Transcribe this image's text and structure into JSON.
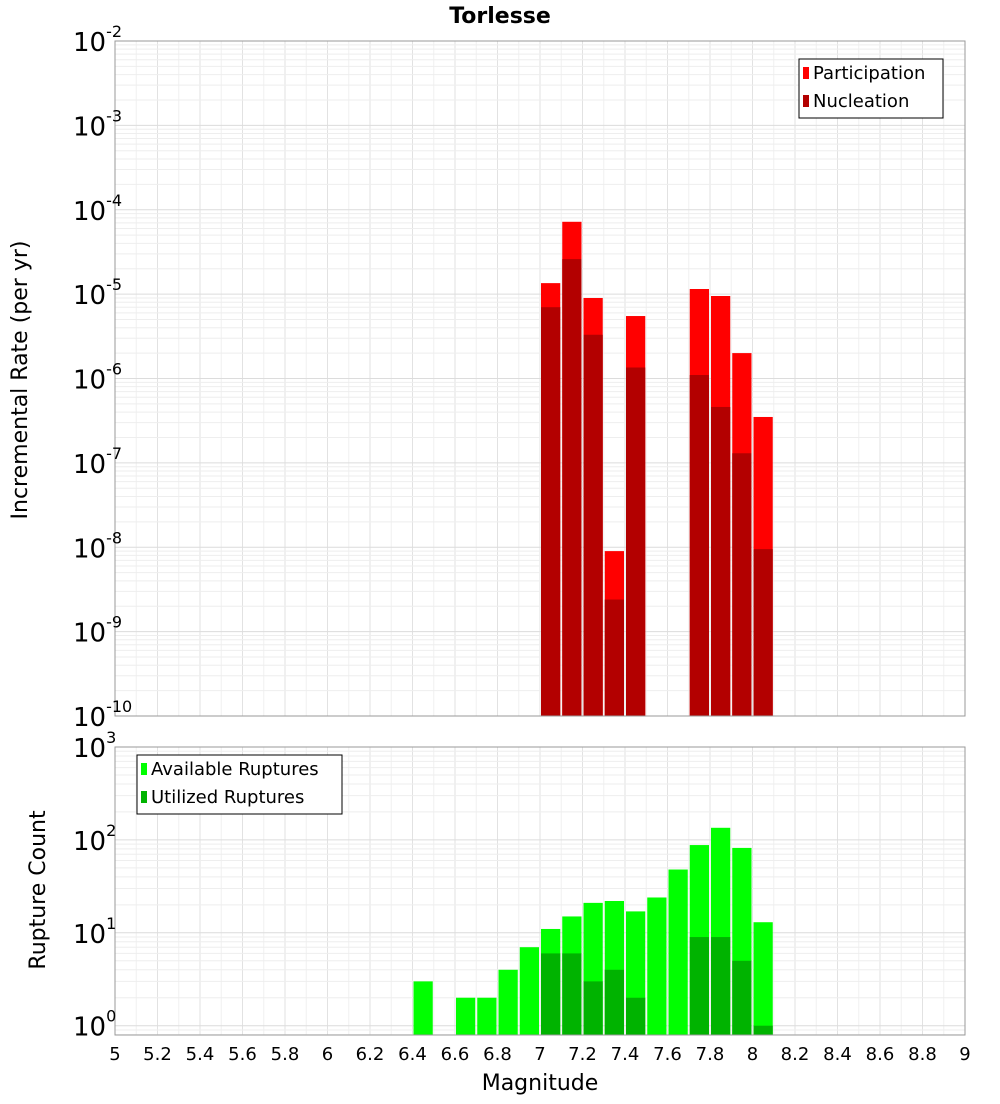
{
  "chart_data": {
    "title": "Torlesse",
    "xlabel": "Magnitude",
    "xlim": [
      5,
      9
    ],
    "x_tick_labels": [
      "5",
      "5.2",
      "5.4",
      "5.6",
      "5.8",
      "6",
      "6.2",
      "6.4",
      "6.6",
      "6.8",
      "7",
      "7.2",
      "7.4",
      "7.6",
      "7.8",
      "8",
      "8.2",
      "8.4",
      "8.6",
      "8.8",
      "9"
    ],
    "bin_width": 0.1,
    "panels": [
      {
        "type": "bar",
        "scale": "log",
        "ylabel": "Incremental Rate (per yr)",
        "ylim_exp": [
          -10,
          -2
        ],
        "y_tick_labels": [
          {
            "base": "10",
            "exp": "-2"
          },
          {
            "base": "10",
            "exp": "-3"
          },
          {
            "base": "10",
            "exp": "-4"
          },
          {
            "base": "10",
            "exp": "-5"
          },
          {
            "base": "10",
            "exp": "-6"
          },
          {
            "base": "10",
            "exp": "-7"
          },
          {
            "base": "10",
            "exp": "-8"
          },
          {
            "base": "10",
            "exp": "-9"
          },
          {
            "base": "10",
            "exp": "-10"
          }
        ],
        "legend_position": "top-right",
        "series": [
          {
            "name": "Participation",
            "color": "#ff0000",
            "points": [
              {
                "x": 7.05,
                "y": 1.35e-05
              },
              {
                "x": 7.15,
                "y": 7.2e-05
              },
              {
                "x": 7.25,
                "y": 9e-06
              },
              {
                "x": 7.35,
                "y": 9e-09
              },
              {
                "x": 7.45,
                "y": 5.5e-06
              },
              {
                "x": 7.75,
                "y": 1.15e-05
              },
              {
                "x": 7.85,
                "y": 9.5e-06
              },
              {
                "x": 7.95,
                "y": 2e-06
              },
              {
                "x": 8.05,
                "y": 3.5e-07
              }
            ]
          },
          {
            "name": "Nucleation",
            "color": "#b30000",
            "points": [
              {
                "x": 7.05,
                "y": 7e-06
              },
              {
                "x": 7.15,
                "y": 2.6e-05
              },
              {
                "x": 7.25,
                "y": 3.3e-06
              },
              {
                "x": 7.35,
                "y": 2.4e-09
              },
              {
                "x": 7.45,
                "y": 1.35e-06
              },
              {
                "x": 7.75,
                "y": 1.1e-06
              },
              {
                "x": 7.85,
                "y": 4.6e-07
              },
              {
                "x": 7.95,
                "y": 1.3e-07
              },
              {
                "x": 8.05,
                "y": 9.5e-09
              }
            ]
          }
        ]
      },
      {
        "type": "bar",
        "scale": "log",
        "ylabel": "Rupture Count",
        "ylim_exp": [
          -0.1,
          3
        ],
        "y_tick_labels": [
          {
            "base": "10",
            "exp": "3"
          },
          {
            "base": "10",
            "exp": "2"
          },
          {
            "base": "10",
            "exp": "1"
          },
          {
            "base": "10",
            "exp": "0"
          }
        ],
        "legend_position": "top-left",
        "series": [
          {
            "name": "Available Ruptures",
            "color": "#00ff00",
            "points": [
              {
                "x": 6.45,
                "y": 3
              },
              {
                "x": 6.65,
                "y": 2
              },
              {
                "x": 6.75,
                "y": 2
              },
              {
                "x": 6.85,
                "y": 4
              },
              {
                "x": 6.95,
                "y": 7
              },
              {
                "x": 7.05,
                "y": 11
              },
              {
                "x": 7.15,
                "y": 15
              },
              {
                "x": 7.25,
                "y": 21
              },
              {
                "x": 7.35,
                "y": 22
              },
              {
                "x": 7.45,
                "y": 17
              },
              {
                "x": 7.55,
                "y": 24
              },
              {
                "x": 7.65,
                "y": 48
              },
              {
                "x": 7.75,
                "y": 88
              },
              {
                "x": 7.85,
                "y": 135
              },
              {
                "x": 7.95,
                "y": 82
              },
              {
                "x": 8.05,
                "y": 13
              }
            ]
          },
          {
            "name": "Utilized Ruptures",
            "color": "#00b300",
            "points": [
              {
                "x": 7.05,
                "y": 6
              },
              {
                "x": 7.15,
                "y": 6
              },
              {
                "x": 7.25,
                "y": 3
              },
              {
                "x": 7.35,
                "y": 4
              },
              {
                "x": 7.45,
                "y": 2
              },
              {
                "x": 7.75,
                "y": 9
              },
              {
                "x": 7.85,
                "y": 9
              },
              {
                "x": 7.95,
                "y": 5
              },
              {
                "x": 8.05,
                "y": 1
              }
            ]
          }
        ]
      }
    ]
  }
}
